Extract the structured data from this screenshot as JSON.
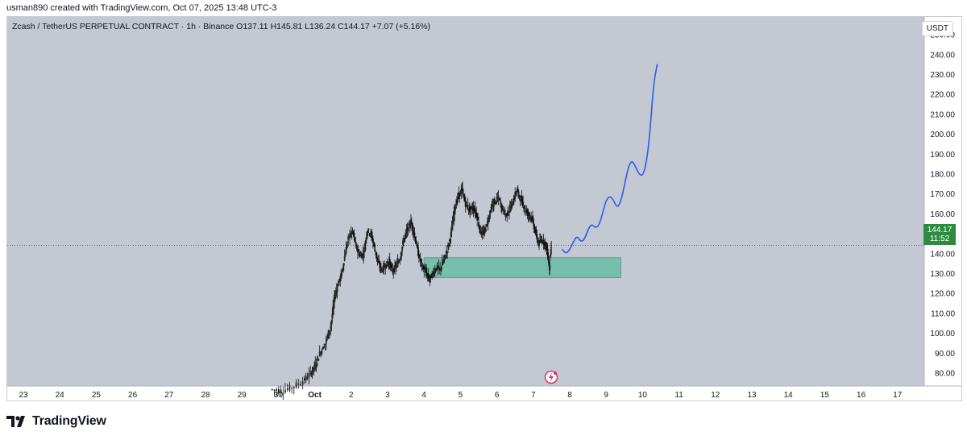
{
  "header": {
    "text": "usman890 created with TradingView.com, Oct 07, 2025 13:48 UTC-3"
  },
  "symbol": {
    "text": "Zcash / TetherUS PERPETUAL CONTRACT · 1h · Binance  O137.11  H145.81  L136.24  C144.17  +7.07 (+5.16%)"
  },
  "currency_button": "USDT",
  "price_tag": {
    "price": "144.17",
    "countdown": "11:52"
  },
  "logo": {
    "text": "TradingView",
    "icon": "tradingview-logo-icon"
  },
  "icons": {
    "bolt": "lightning-bolt-icon"
  },
  "colors": {
    "background": "#c4c8d2",
    "candle": "#111111",
    "zone": "#6fbfaa",
    "projection": "#2a5de8",
    "price_tag": "#2e8b3e"
  },
  "chart_data": {
    "type": "candlestick",
    "title": "",
    "xlabel": "",
    "ylabel": "",
    "ylim": [
      70,
      250
    ],
    "y_ticks": [
      "250.00",
      "240.00",
      "230.00",
      "220.00",
      "210.00",
      "200.00",
      "190.00",
      "180.00",
      "170.00",
      "160.00",
      "150.00",
      "140.00",
      "130.00",
      "120.00",
      "110.00",
      "100.00",
      "90.00",
      "80.00"
    ],
    "x_ticks": [
      "23",
      "24",
      "25",
      "26",
      "27",
      "28",
      "29",
      "30",
      "Oct",
      "2",
      "3",
      "4",
      "5",
      "6",
      "7",
      "8",
      "9",
      "10",
      "11",
      "12",
      "13",
      "14",
      "15",
      "16",
      "17"
    ],
    "last_price": 144.17,
    "ohlc_last": {
      "open": 137.11,
      "high": 145.81,
      "low": 136.24,
      "close": 144.17,
      "change": 7.07,
      "change_pct": 5.16
    },
    "price_path": [
      [
        29.8,
        72
      ],
      [
        30.1,
        71
      ],
      [
        30.4,
        73
      ],
      [
        30.7,
        76
      ],
      [
        30.9,
        80
      ],
      [
        1.0,
        83
      ],
      [
        1.15,
        90
      ],
      [
        1.3,
        95
      ],
      [
        1.45,
        104
      ],
      [
        1.55,
        118
      ],
      [
        1.65,
        125
      ],
      [
        1.75,
        130
      ],
      [
        1.85,
        141
      ],
      [
        1.95,
        149
      ],
      [
        2.05,
        151
      ],
      [
        2.15,
        143
      ],
      [
        2.25,
        139
      ],
      [
        2.35,
        140
      ],
      [
        2.45,
        152
      ],
      [
        2.55,
        150
      ],
      [
        2.65,
        143
      ],
      [
        2.75,
        135
      ],
      [
        2.85,
        132
      ],
      [
        2.95,
        134
      ],
      [
        3.05,
        136
      ],
      [
        3.15,
        131
      ],
      [
        3.25,
        134
      ],
      [
        3.35,
        138
      ],
      [
        3.45,
        147
      ],
      [
        3.55,
        152
      ],
      [
        3.65,
        156
      ],
      [
        3.75,
        149
      ],
      [
        3.85,
        140
      ],
      [
        3.95,
        134
      ],
      [
        4.05,
        131
      ],
      [
        4.15,
        127
      ],
      [
        4.25,
        130
      ],
      [
        4.35,
        133
      ],
      [
        4.45,
        132
      ],
      [
        4.55,
        137
      ],
      [
        4.65,
        142
      ],
      [
        4.75,
        150
      ],
      [
        4.85,
        163
      ],
      [
        4.95,
        169
      ],
      [
        5.05,
        172
      ],
      [
        5.15,
        165
      ],
      [
        5.25,
        162
      ],
      [
        5.35,
        163
      ],
      [
        5.45,
        160
      ],
      [
        5.55,
        151
      ],
      [
        5.65,
        150
      ],
      [
        5.75,
        156
      ],
      [
        5.85,
        163
      ],
      [
        5.95,
        166
      ],
      [
        6.05,
        168
      ],
      [
        6.15,
        163
      ],
      [
        6.25,
        159
      ],
      [
        6.35,
        162
      ],
      [
        6.45,
        166
      ],
      [
        6.55,
        172
      ],
      [
        6.65,
        168
      ],
      [
        6.75,
        164
      ],
      [
        6.85,
        160
      ],
      [
        6.95,
        159
      ],
      [
        7.05,
        152
      ],
      [
        7.15,
        145
      ],
      [
        7.25,
        147
      ],
      [
        7.35,
        145
      ],
      [
        7.4,
        140
      ],
      [
        7.45,
        133
      ],
      [
        7.5,
        144.17
      ]
    ],
    "support_zone": {
      "x_start": 4.0,
      "x_end": 9.4,
      "y_low": 128,
      "y_high": 138
    },
    "projection_path": [
      [
        7.8,
        142
      ],
      [
        7.9,
        140
      ],
      [
        8.0,
        142
      ],
      [
        8.1,
        146
      ],
      [
        8.2,
        149
      ],
      [
        8.3,
        146
      ],
      [
        8.4,
        147
      ],
      [
        8.5,
        152
      ],
      [
        8.6,
        155
      ],
      [
        8.7,
        153
      ],
      [
        8.8,
        154
      ],
      [
        8.9,
        160
      ],
      [
        9.0,
        167
      ],
      [
        9.1,
        169
      ],
      [
        9.2,
        167
      ],
      [
        9.3,
        163
      ],
      [
        9.4,
        166
      ],
      [
        9.5,
        174
      ],
      [
        9.6,
        183
      ],
      [
        9.7,
        187
      ],
      [
        9.8,
        184
      ],
      [
        9.9,
        180
      ],
      [
        10.0,
        179
      ],
      [
        10.1,
        185
      ],
      [
        10.2,
        200
      ],
      [
        10.3,
        225
      ],
      [
        10.4,
        235
      ]
    ]
  }
}
